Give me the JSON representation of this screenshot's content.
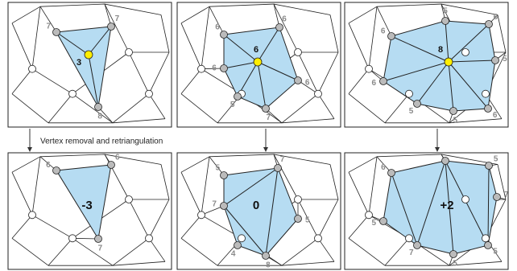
{
  "caption": "Vertex removal and retriangulation",
  "panels": [
    {
      "label": "3",
      "degrees": [
        "7",
        "7",
        "8"
      ]
    },
    {
      "label": "6",
      "degrees": [
        "6",
        "6",
        "6",
        "7",
        "5",
        "6"
      ]
    },
    {
      "label": "8",
      "degrees": [
        "6",
        "5",
        "6",
        "5",
        "6",
        "5",
        "5",
        "6"
      ]
    },
    {
      "label": "-3",
      "degrees": [
        "6",
        "6",
        "7"
      ]
    },
    {
      "label": "0",
      "degrees": [
        "5",
        "7",
        "5",
        "8",
        "4",
        "7"
      ]
    },
    {
      "label": "+2",
      "degrees": [
        "6",
        "6",
        "5",
        "7",
        "5",
        "5",
        "7",
        "5"
      ]
    }
  ]
}
